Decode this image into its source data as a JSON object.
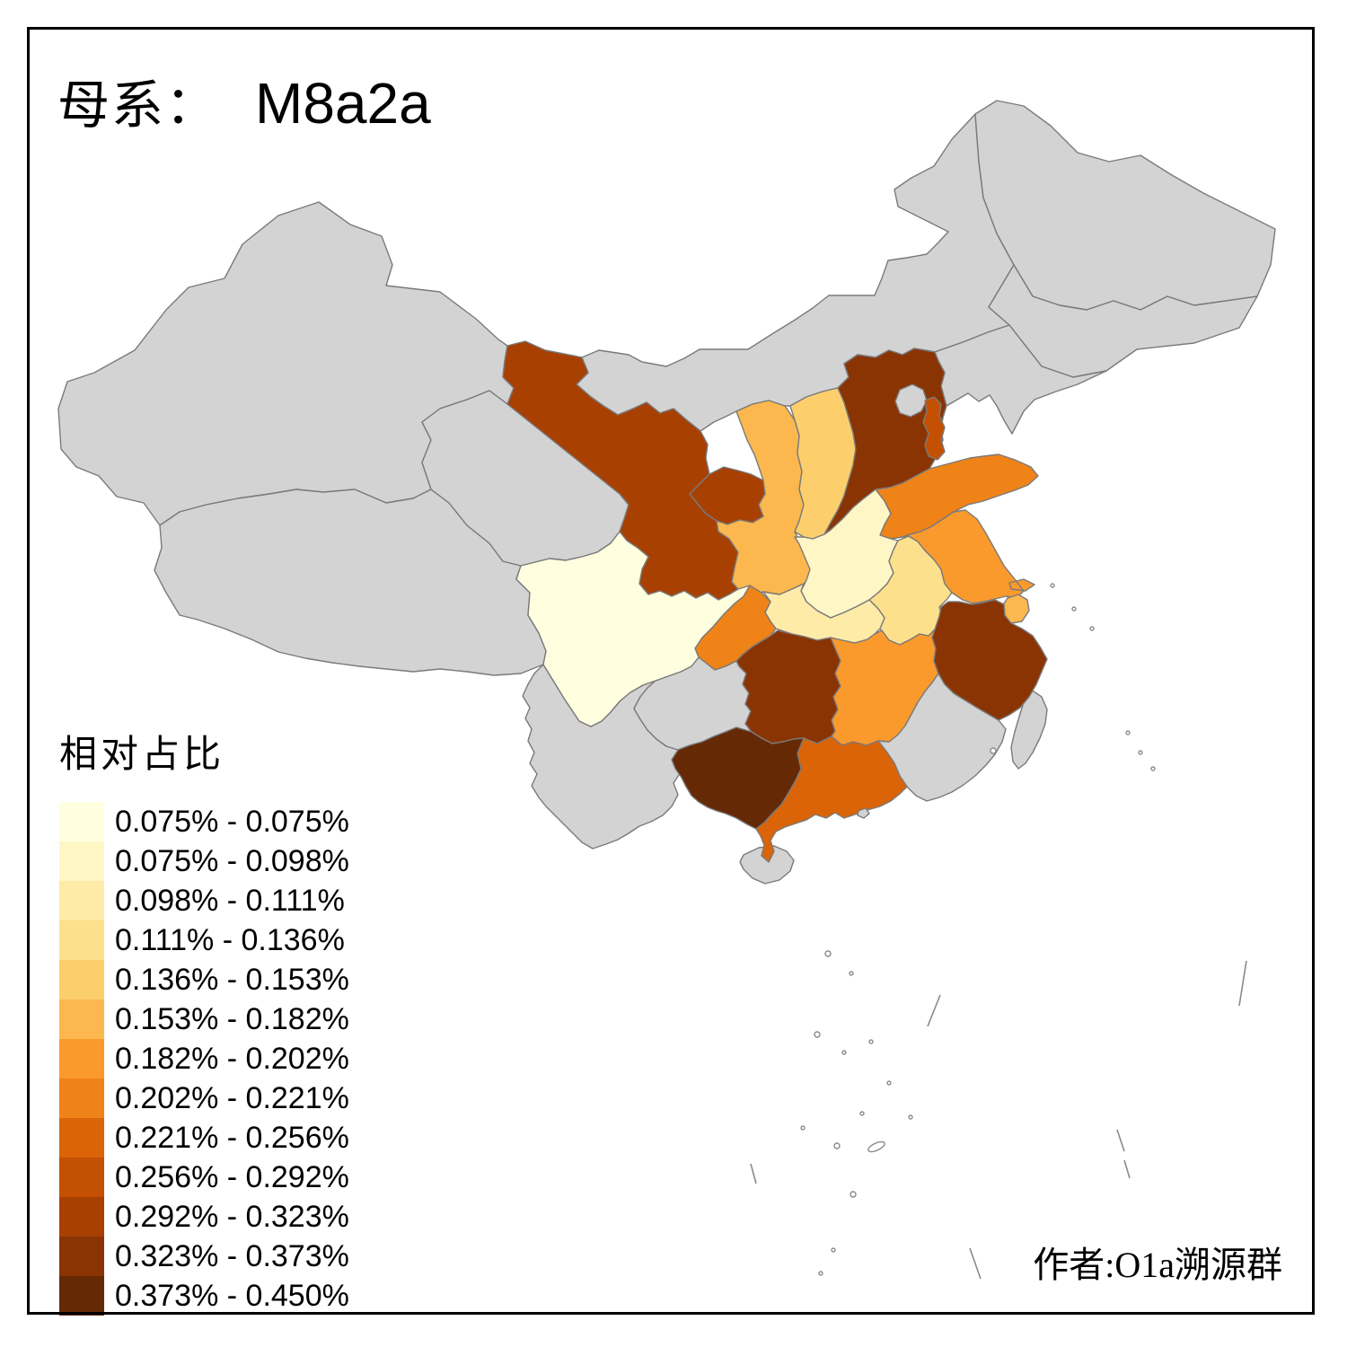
{
  "title": {
    "prefix": "母系：",
    "haplogroup": "M8a2a"
  },
  "legend": {
    "title": "相对占比",
    "entries": [
      {
        "color": "#FFFFE0",
        "label": "0.075% - 0.075%"
      },
      {
        "color": "#FFF6C6",
        "label": "0.075% - 0.098%"
      },
      {
        "color": "#FEEBA8",
        "label": "0.098% - 0.111%"
      },
      {
        "color": "#FDE08C",
        "label": "0.111% - 0.136%"
      },
      {
        "color": "#FDCF6C",
        "label": "0.136% - 0.153%"
      },
      {
        "color": "#FCB84E",
        "label": "0.153% - 0.182%"
      },
      {
        "color": "#FB9A2C",
        "label": "0.182% - 0.202%"
      },
      {
        "color": "#EF8318",
        "label": "0.202% - 0.221%"
      },
      {
        "color": "#DB6408",
        "label": "0.221% - 0.256%"
      },
      {
        "color": "#C45103",
        "label": "0.256% - 0.292%"
      },
      {
        "color": "#A84002",
        "label": "0.292% - 0.323%"
      },
      {
        "color": "#8A3403",
        "label": "0.323% - 0.373%"
      },
      {
        "color": "#662906",
        "label": "0.373% - 0.450%"
      }
    ]
  },
  "attribution": "作者:O1a溯源群",
  "map": {
    "sea_color": "#FFFFFF",
    "no_data_color": "#D3D3D3",
    "border_color": "#7A7A7A",
    "frame_color": "#000000",
    "regions": [
      {
        "id": "xinjiang",
        "color": "#D3D3D3",
        "range": ""
      },
      {
        "id": "tibet",
        "color": "#D3D3D3",
        "range": ""
      },
      {
        "id": "qinghai",
        "color": "#D3D3D3",
        "range": ""
      },
      {
        "id": "inner-mongolia",
        "color": "#D3D3D3",
        "range": ""
      },
      {
        "id": "heilongjiang",
        "color": "#D3D3D3",
        "range": ""
      },
      {
        "id": "jilin",
        "color": "#D3D3D3",
        "range": ""
      },
      {
        "id": "liaoning",
        "color": "#D3D3D3",
        "range": ""
      },
      {
        "id": "beijing",
        "color": "#D3D3D3",
        "range": ""
      },
      {
        "id": "yunnan",
        "color": "#D3D3D3",
        "range": ""
      },
      {
        "id": "guizhou",
        "color": "#D3D3D3",
        "range": ""
      },
      {
        "id": "fujian",
        "color": "#D3D3D3",
        "range": ""
      },
      {
        "id": "hainan",
        "color": "#D3D3D3",
        "range": ""
      },
      {
        "id": "taiwan",
        "color": "#D3D3D3",
        "range": ""
      },
      {
        "id": "hongkong",
        "color": "#D3D3D3",
        "range": ""
      },
      {
        "id": "sichuan",
        "color": "#FFFFE0",
        "range": "0.075% - 0.075%"
      },
      {
        "id": "henan",
        "color": "#FFF6C6",
        "range": "0.075% - 0.098%"
      },
      {
        "id": "hubei",
        "color": "#FEEBA8",
        "range": "0.098% - 0.111%"
      },
      {
        "id": "anhui",
        "color": "#FDE08C",
        "range": "0.111% - 0.136%"
      },
      {
        "id": "shanxi",
        "color": "#FDCF6C",
        "range": "0.136% - 0.153%"
      },
      {
        "id": "shaanxi",
        "color": "#FCB84E",
        "range": "0.153% - 0.182%"
      },
      {
        "id": "shanghai",
        "color": "#FCB84E",
        "range": "0.153% - 0.182%"
      },
      {
        "id": "jiangsu",
        "color": "#FB9A2C",
        "range": "0.182% - 0.202%"
      },
      {
        "id": "jiangxi",
        "color": "#FB9A2C",
        "range": "0.182% - 0.202%"
      },
      {
        "id": "shandong",
        "color": "#EF8318",
        "range": "0.202% - 0.221%"
      },
      {
        "id": "chongqing",
        "color": "#EF8318",
        "range": "0.202% - 0.221%"
      },
      {
        "id": "guangdong",
        "color": "#DB6408",
        "range": "0.221% - 0.256%"
      },
      {
        "id": "tianjin",
        "color": "#C45103",
        "range": "0.256% - 0.292%"
      },
      {
        "id": "gansu",
        "color": "#A84002",
        "range": "0.292% - 0.323%"
      },
      {
        "id": "ningxia",
        "color": "#A84002",
        "range": "0.292% - 0.323%"
      },
      {
        "id": "hebei",
        "color": "#8A3403",
        "range": "0.323% - 0.373%"
      },
      {
        "id": "hunan",
        "color": "#8A3403",
        "range": "0.323% - 0.373%"
      },
      {
        "id": "zhejiang",
        "color": "#8A3403",
        "range": "0.323% - 0.373%"
      },
      {
        "id": "guangxi",
        "color": "#662906",
        "range": "0.373% - 0.450%"
      }
    ]
  }
}
